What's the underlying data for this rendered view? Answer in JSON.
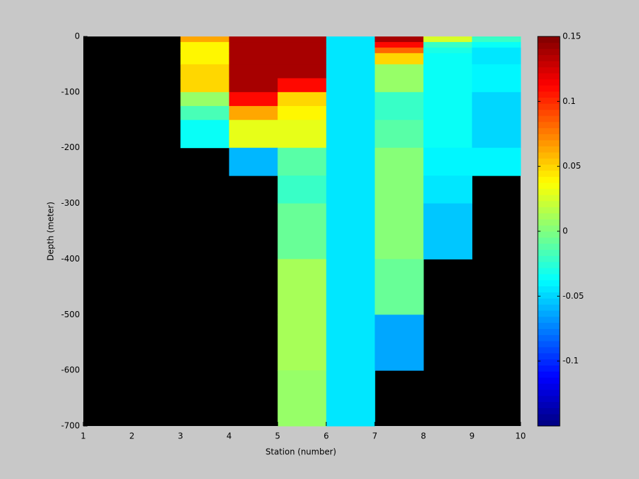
{
  "chart_data": {
    "type": "heatmap",
    "xlabel": "Station (number)",
    "ylabel": "Depth (meter)",
    "colormap": "jet",
    "x_edges": [
      1,
      2,
      3,
      4,
      5,
      6,
      7,
      8,
      9,
      10
    ],
    "y_edges": [
      0,
      -10,
      -20,
      -30,
      -50,
      -75,
      -100,
      -125,
      -150,
      -200,
      -250,
      -300,
      -400,
      -500,
      -600,
      -700
    ],
    "z": [
      [
        null,
        null,
        0.065,
        0.14,
        0.14,
        -0.045,
        0.14,
        0.025,
        -0.02
      ],
      [
        null,
        null,
        0.04,
        0.14,
        0.14,
        -0.045,
        0.11,
        -0.02,
        -0.035
      ],
      [
        null,
        null,
        0.04,
        0.14,
        0.14,
        -0.045,
        0.08,
        -0.03,
        -0.045
      ],
      [
        null,
        null,
        0.04,
        0.14,
        0.14,
        -0.045,
        0.05,
        -0.035,
        -0.045
      ],
      [
        null,
        null,
        0.05,
        0.14,
        0.14,
        -0.045,
        0.005,
        -0.035,
        -0.04
      ],
      [
        null,
        null,
        0.05,
        0.14,
        0.11,
        -0.045,
        0.005,
        -0.035,
        -0.04
      ],
      [
        null,
        null,
        0.005,
        0.11,
        0.05,
        -0.045,
        -0.02,
        -0.037,
        -0.05
      ],
      [
        null,
        null,
        -0.015,
        0.065,
        0.04,
        -0.045,
        -0.02,
        -0.037,
        -0.05
      ],
      [
        null,
        null,
        -0.035,
        0.03,
        0.03,
        -0.045,
        -0.012,
        -0.036,
        -0.05
      ],
      [
        null,
        null,
        null,
        -0.06,
        -0.01,
        -0.045,
        0.002,
        -0.04,
        -0.04
      ],
      [
        null,
        null,
        null,
        null,
        -0.02,
        -0.045,
        0.002,
        -0.045,
        null
      ],
      [
        null,
        null,
        null,
        null,
        -0.008,
        -0.045,
        0.003,
        -0.055,
        null
      ],
      [
        null,
        null,
        null,
        null,
        0.01,
        -0.045,
        -0.008,
        null,
        null
      ],
      [
        null,
        null,
        null,
        null,
        0.01,
        -0.045,
        -0.065,
        null,
        null
      ],
      [
        null,
        null,
        null,
        null,
        0.005,
        -0.045,
        null,
        null,
        null
      ]
    ],
    "xlim": [
      1,
      10
    ],
    "xticks": [
      1,
      2,
      3,
      4,
      5,
      6,
      7,
      8,
      9,
      10
    ],
    "ylim": [
      -700,
      0
    ],
    "yticks": [
      0,
      -100,
      -200,
      -300,
      -400,
      -500,
      -600,
      -700
    ],
    "clim": [
      -0.15,
      0.15
    ],
    "cticks": [
      -0.1,
      -0.05,
      0,
      0.05,
      0.1,
      0.15
    ]
  }
}
